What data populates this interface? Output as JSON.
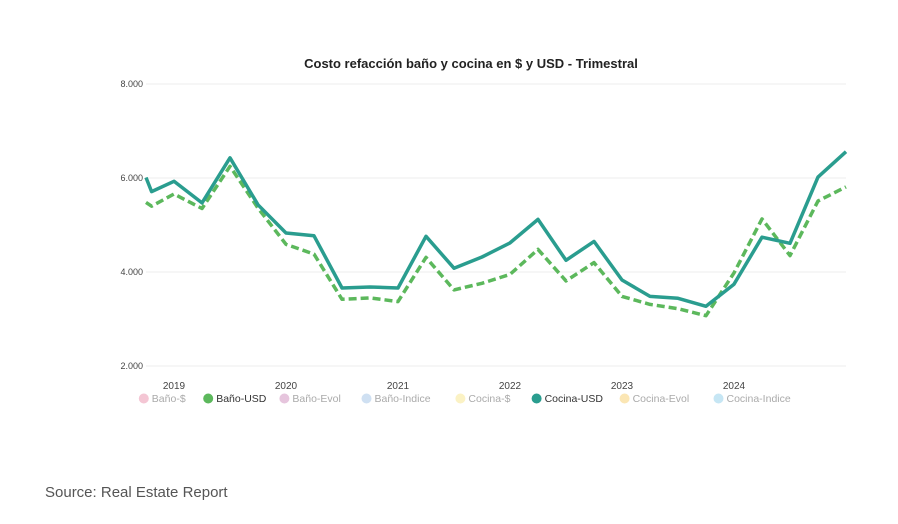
{
  "chart_data": {
    "type": "line",
    "title": "Costo refacción baño y cocina en $ y USD - Trimestral",
    "xlabel": "",
    "ylabel": "",
    "ylim": [
      2000,
      8000
    ],
    "xlim": [
      2018.75,
      2025.0
    ],
    "grid": true,
    "yticks": [
      2000,
      4000,
      6000,
      8000
    ],
    "ytick_labels": [
      "2.000",
      "4.000",
      "6.000",
      "8.000"
    ],
    "xticks": [
      2019,
      2020,
      2021,
      2022,
      2023,
      2024
    ],
    "xtick_labels": [
      "2019",
      "2020",
      "2021",
      "2022",
      "2023",
      "2024"
    ],
    "x": [
      2018.75,
      2018.8,
      2019.0,
      2019.25,
      2019.5,
      2019.75,
      2020.0,
      2020.25,
      2020.5,
      2020.75,
      2021.0,
      2021.25,
      2021.5,
      2021.75,
      2022.0,
      2022.25,
      2022.5,
      2022.75,
      2023.0,
      2023.25,
      2023.5,
      2023.75,
      2024.0,
      2024.25,
      2024.5,
      2024.75,
      2025.0
    ],
    "series": [
      {
        "name": "Baño-USD",
        "color": "#5cb85c",
        "dash": true,
        "values": [
          5480,
          5400,
          5660,
          5350,
          6250,
          5360,
          4590,
          4380,
          3420,
          3450,
          3370,
          4310,
          3620,
          3760,
          3950,
          4480,
          3810,
          4200,
          3480,
          3310,
          3220,
          3070,
          3980,
          5130,
          4350,
          5510,
          5810
        ]
      },
      {
        "name": "Cocina-USD",
        "color": "#2a9d8f",
        "dash": false,
        "values": [
          6010,
          5710,
          5930,
          5470,
          6430,
          5430,
          4830,
          4770,
          3660,
          3680,
          3660,
          4760,
          4080,
          4320,
          4620,
          5120,
          4250,
          4650,
          3830,
          3480,
          3440,
          3270,
          3740,
          4740,
          4610,
          6020,
          6560
        ]
      }
    ],
    "legend_position": "bottom",
    "legend": [
      {
        "label": "Baño-$",
        "color": "#f4c6d4",
        "active": false
      },
      {
        "label": "Baño-USD",
        "color": "#5cb85c",
        "active": true
      },
      {
        "label": "Baño-Evol",
        "color": "#e6c5dd",
        "active": false
      },
      {
        "label": "Baño-Indice",
        "color": "#cfe0f2",
        "active": false
      },
      {
        "label": "Cocina-$",
        "color": "#fbf2c4",
        "active": false
      },
      {
        "label": "Cocina-USD",
        "color": "#2a9d8f",
        "active": true
      },
      {
        "label": "Cocina-Evol",
        "color": "#fbe6b4",
        "active": false
      },
      {
        "label": "Cocina-Indice",
        "color": "#c6e6f4",
        "active": false
      }
    ]
  },
  "source_text": "Source: Real Estate Report"
}
